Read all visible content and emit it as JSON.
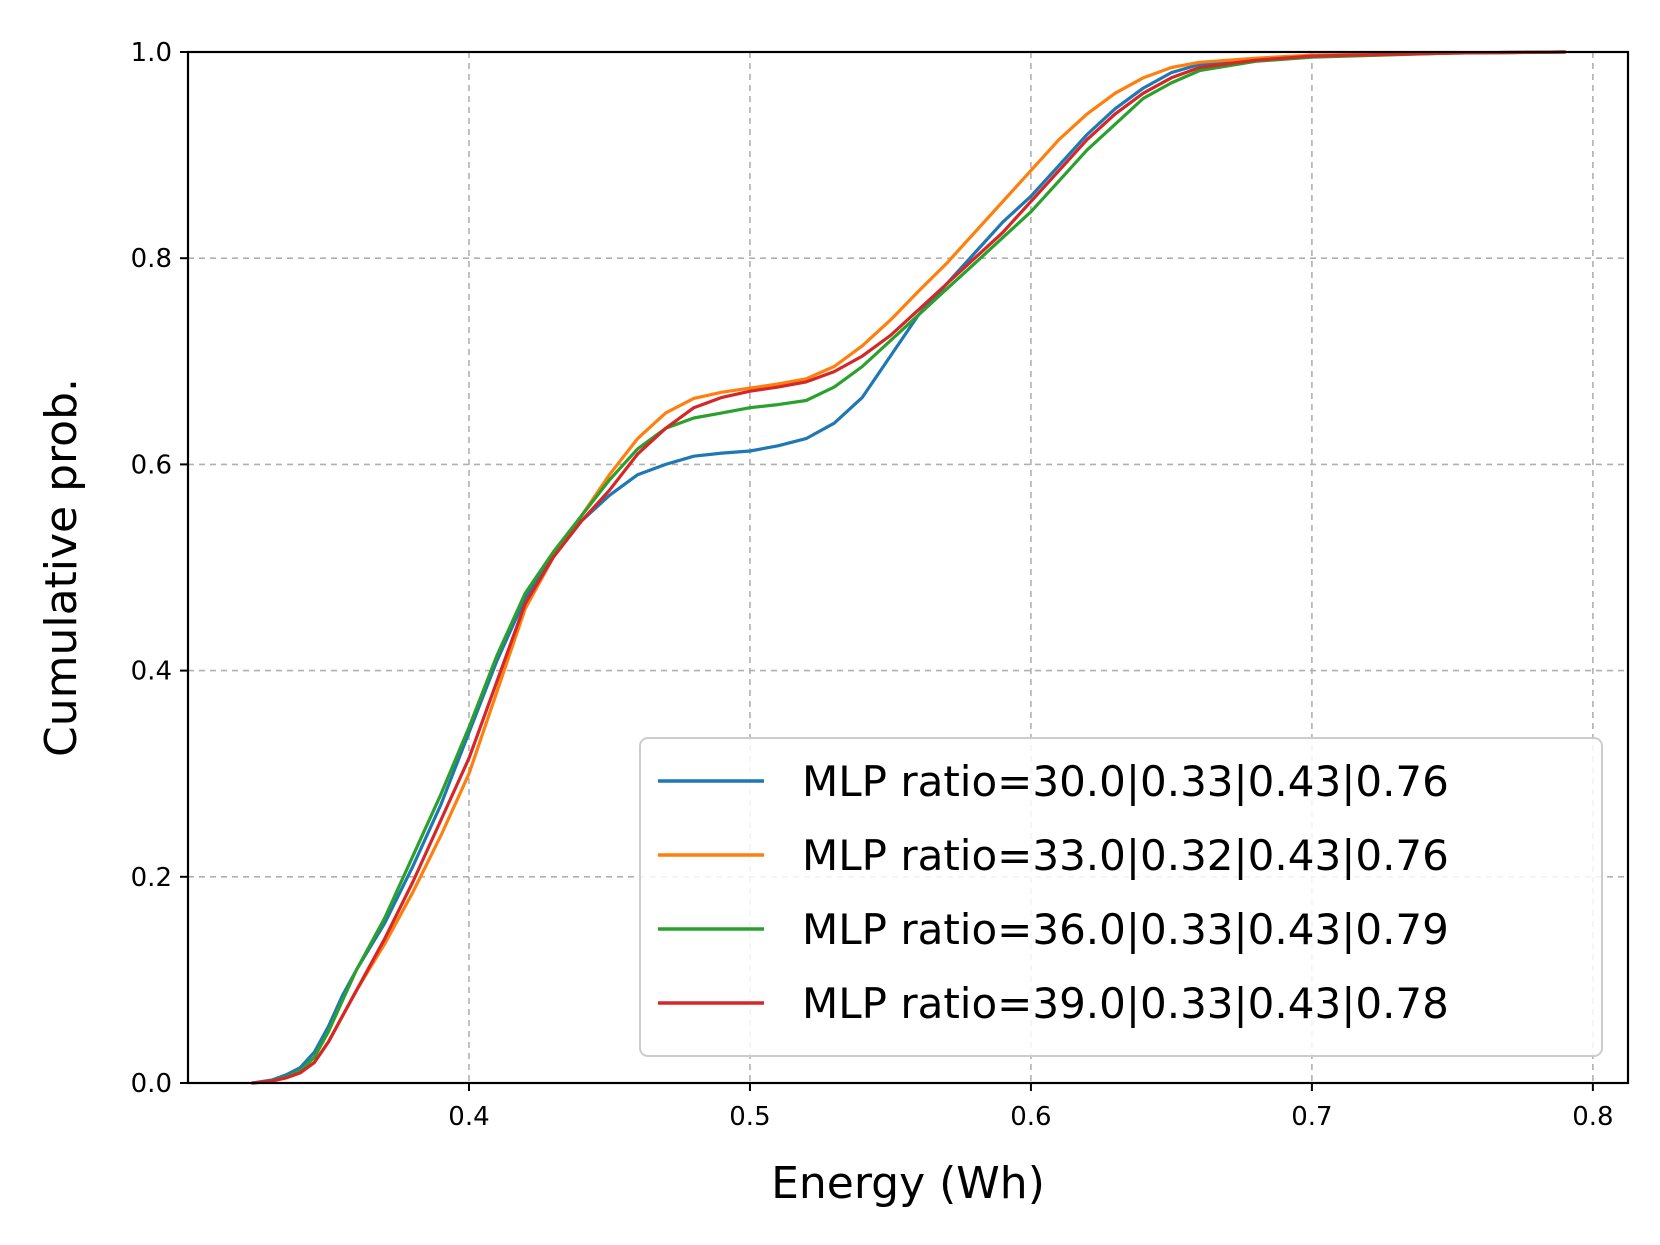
{
  "chart_data": {
    "type": "line",
    "title": "",
    "xlabel": "Energy (Wh)",
    "ylabel": "Cumulative prob.",
    "xlim": [
      0.3,
      0.8125
    ],
    "ylim": [
      0.0,
      1.0
    ],
    "xticks": [
      0.4,
      0.5,
      0.6,
      0.7,
      0.8
    ],
    "xtick_labels": [
      "0.4",
      "0.5",
      "0.6",
      "0.7",
      "0.8"
    ],
    "yticks": [
      0.0,
      0.2,
      0.4,
      0.6,
      0.8,
      1.0
    ],
    "ytick_labels": [
      "0.0",
      "0.2",
      "0.4",
      "0.6",
      "0.8",
      "1.0"
    ],
    "grid": true,
    "legend_position": "lower-right",
    "series": [
      {
        "name": "MLP ratio=30.0|0.33|0.43|0.76",
        "color": "#1f77b4",
        "x": [
          0.323,
          0.33,
          0.335,
          0.34,
          0.345,
          0.35,
          0.355,
          0.36,
          0.37,
          0.38,
          0.39,
          0.4,
          0.41,
          0.42,
          0.43,
          0.44,
          0.45,
          0.46,
          0.47,
          0.48,
          0.49,
          0.5,
          0.51,
          0.52,
          0.53,
          0.54,
          0.55,
          0.56,
          0.57,
          0.58,
          0.59,
          0.6,
          0.61,
          0.62,
          0.63,
          0.64,
          0.65,
          0.66,
          0.68,
          0.7,
          0.75,
          0.79
        ],
        "y": [
          0.0,
          0.003,
          0.008,
          0.015,
          0.03,
          0.055,
          0.085,
          0.11,
          0.155,
          0.21,
          0.27,
          0.34,
          0.41,
          0.47,
          0.51,
          0.545,
          0.57,
          0.59,
          0.6,
          0.608,
          0.611,
          0.613,
          0.618,
          0.625,
          0.64,
          0.665,
          0.705,
          0.745,
          0.775,
          0.805,
          0.835,
          0.86,
          0.89,
          0.92,
          0.945,
          0.965,
          0.98,
          0.988,
          0.993,
          0.996,
          0.999,
          1.0
        ]
      },
      {
        "name": "MLP ratio=33.0|0.32|0.43|0.76",
        "color": "#ff7f0e",
        "x": [
          0.323,
          0.33,
          0.335,
          0.34,
          0.345,
          0.35,
          0.355,
          0.36,
          0.37,
          0.38,
          0.39,
          0.4,
          0.41,
          0.42,
          0.43,
          0.44,
          0.45,
          0.46,
          0.47,
          0.48,
          0.49,
          0.5,
          0.51,
          0.52,
          0.53,
          0.54,
          0.55,
          0.56,
          0.57,
          0.58,
          0.59,
          0.6,
          0.61,
          0.62,
          0.63,
          0.64,
          0.65,
          0.66,
          0.68,
          0.7,
          0.75,
          0.79
        ],
        "y": [
          0.0,
          0.002,
          0.005,
          0.01,
          0.02,
          0.04,
          0.065,
          0.09,
          0.135,
          0.185,
          0.24,
          0.3,
          0.38,
          0.46,
          0.51,
          0.55,
          0.59,
          0.625,
          0.65,
          0.664,
          0.67,
          0.674,
          0.678,
          0.683,
          0.695,
          0.715,
          0.74,
          0.768,
          0.795,
          0.825,
          0.855,
          0.885,
          0.915,
          0.94,
          0.96,
          0.975,
          0.985,
          0.99,
          0.994,
          0.997,
          0.999,
          1.0
        ]
      },
      {
        "name": "MLP ratio=36.0|0.33|0.43|0.79",
        "color": "#2ca02c",
        "x": [
          0.323,
          0.33,
          0.335,
          0.34,
          0.345,
          0.35,
          0.355,
          0.36,
          0.37,
          0.38,
          0.39,
          0.4,
          0.41,
          0.42,
          0.43,
          0.44,
          0.45,
          0.46,
          0.47,
          0.48,
          0.49,
          0.5,
          0.51,
          0.52,
          0.53,
          0.54,
          0.55,
          0.56,
          0.57,
          0.58,
          0.59,
          0.6,
          0.61,
          0.62,
          0.63,
          0.64,
          0.65,
          0.66,
          0.68,
          0.7,
          0.75,
          0.79
        ],
        "y": [
          0.0,
          0.002,
          0.006,
          0.012,
          0.025,
          0.05,
          0.08,
          0.11,
          0.16,
          0.22,
          0.28,
          0.345,
          0.415,
          0.475,
          0.515,
          0.55,
          0.585,
          0.615,
          0.635,
          0.645,
          0.65,
          0.655,
          0.658,
          0.662,
          0.675,
          0.695,
          0.72,
          0.745,
          0.77,
          0.795,
          0.82,
          0.845,
          0.875,
          0.905,
          0.93,
          0.955,
          0.97,
          0.982,
          0.991,
          0.995,
          0.999,
          1.0
        ]
      },
      {
        "name": "MLP ratio=39.0|0.33|0.43|0.78",
        "color": "#d62728",
        "x": [
          0.323,
          0.33,
          0.335,
          0.34,
          0.345,
          0.35,
          0.355,
          0.36,
          0.37,
          0.38,
          0.39,
          0.4,
          0.41,
          0.42,
          0.43,
          0.44,
          0.45,
          0.46,
          0.47,
          0.48,
          0.49,
          0.5,
          0.51,
          0.52,
          0.53,
          0.54,
          0.55,
          0.56,
          0.57,
          0.58,
          0.59,
          0.6,
          0.61,
          0.62,
          0.63,
          0.64,
          0.65,
          0.66,
          0.68,
          0.7,
          0.75,
          0.79
        ],
        "y": [
          0.0,
          0.002,
          0.005,
          0.01,
          0.02,
          0.04,
          0.065,
          0.09,
          0.14,
          0.195,
          0.255,
          0.315,
          0.39,
          0.465,
          0.51,
          0.545,
          0.575,
          0.61,
          0.635,
          0.655,
          0.665,
          0.671,
          0.675,
          0.68,
          0.69,
          0.705,
          0.725,
          0.75,
          0.775,
          0.8,
          0.825,
          0.855,
          0.885,
          0.915,
          0.94,
          0.96,
          0.975,
          0.985,
          0.992,
          0.996,
          0.999,
          1.0
        ]
      }
    ]
  }
}
